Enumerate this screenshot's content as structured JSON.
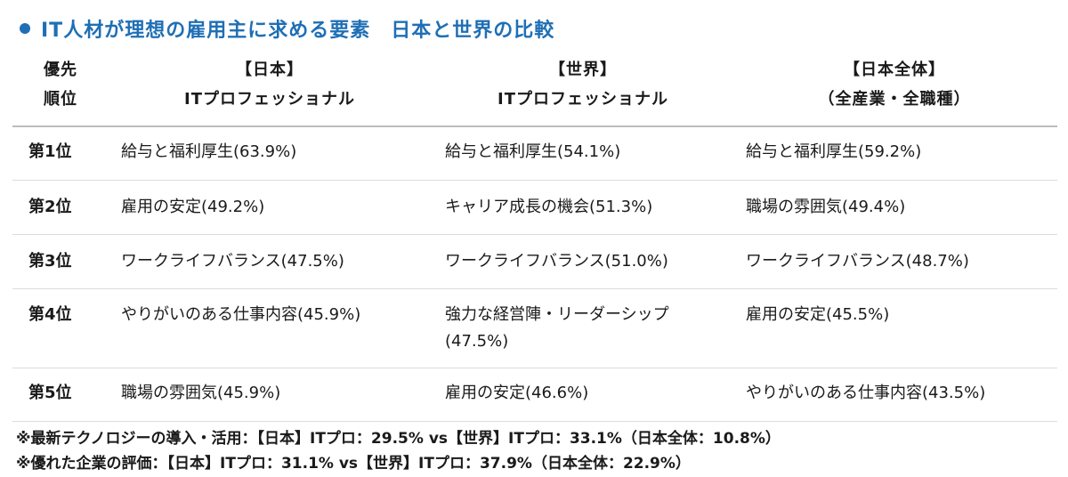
{
  "title": "IT人材が理想の雇用主に求める要素　日本と世界の比較",
  "header": {
    "rank_line1": "優先",
    "rank_line2": "順位",
    "col1_line1": "【日本】",
    "col1_line2": "ITプロフェッショナル",
    "col2_line1": "【世界】",
    "col2_line2": "ITプロフェッショナル",
    "col3_line1": "【日本全体】",
    "col3_line2": "（全産業・全職種）"
  },
  "rows": [
    {
      "rank": "第1位",
      "c1": "給与と福利厚生(63.9%)",
      "c2": "給与と福利厚生(54.1%)",
      "c3": "給与と福利厚生(59.2%)"
    },
    {
      "rank": "第2位",
      "c1": "雇用の安定(49.2%)",
      "c2": "キャリア成長の機会(51.3%)",
      "c3": "職場の雰囲気(49.4%)"
    },
    {
      "rank": "第3位",
      "c1": "ワークライフバランス(47.5%)",
      "c2": "ワークライフバランス(51.0%)",
      "c3": "ワークライフバランス(48.7%)"
    },
    {
      "rank": "第4位",
      "c1": "やりがいのある仕事内容(45.9%)",
      "c2_line1": "強力な経営陣・リーダーシップ",
      "c2_line2": "(47.5%)",
      "c3": "雇用の安定(45.5%)"
    },
    {
      "rank": "第5位",
      "c1": "職場の雰囲気(45.9%)",
      "c2": "雇用の安定(46.6%)",
      "c3": "やりがいのある仕事内容(43.5%)"
    }
  ],
  "notes": [
    "※最新テクノロジーの導入・活用：【日本】ITプロ：29.5% vs【世界】ITプロ：33.1%（日本全体：10.8%）",
    "※優れた企業の評価：【日本】ITプロ：31.1% vs【世界】ITプロ：37.9%（日本全体：22.9%）"
  ],
  "colors": {
    "accent": "#1f6fb5",
    "text": "#1a1a1a",
    "rule": "#dcdcdc"
  }
}
